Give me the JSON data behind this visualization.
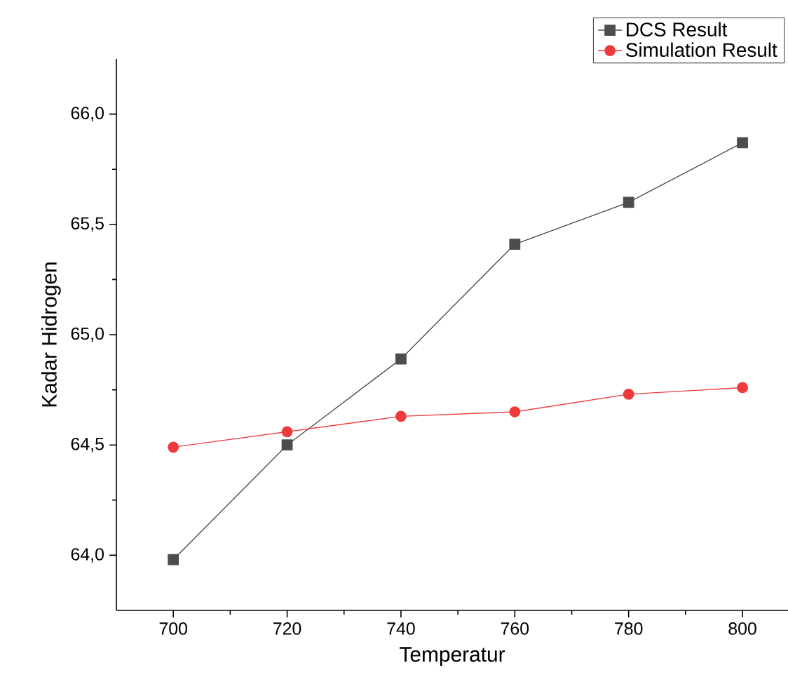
{
  "chart_data": {
    "type": "line",
    "xlabel": "Temperatur",
    "ylabel": "Kadar Hidrogen",
    "x": [
      700,
      720,
      740,
      760,
      780,
      800
    ],
    "series": [
      {
        "name": "DCS Result",
        "color": "#4d4d4d",
        "marker": "square",
        "values": [
          63.98,
          64.5,
          64.89,
          65.41,
          65.6,
          65.87
        ]
      },
      {
        "name": "Simulation Result",
        "color": "#ee3a3c",
        "marker": "circle",
        "values": [
          64.49,
          64.56,
          64.63,
          64.65,
          64.73,
          64.76
        ]
      }
    ],
    "xlim": [
      690,
      808
    ],
    "ylim": [
      63.75,
      66.25
    ],
    "xticks": [
      700,
      720,
      740,
      760,
      780,
      800
    ],
    "yticks": [
      {
        "value": 64,
        "label": "64,0"
      },
      {
        "value": 64.5,
        "label": "64,5"
      },
      {
        "value": 65,
        "label": "65,0"
      },
      {
        "value": 65.5,
        "label": "65,5"
      },
      {
        "value": 66,
        "label": "66,0"
      }
    ],
    "grid": false,
    "legend": "top right",
    "line_style": "solid"
  }
}
